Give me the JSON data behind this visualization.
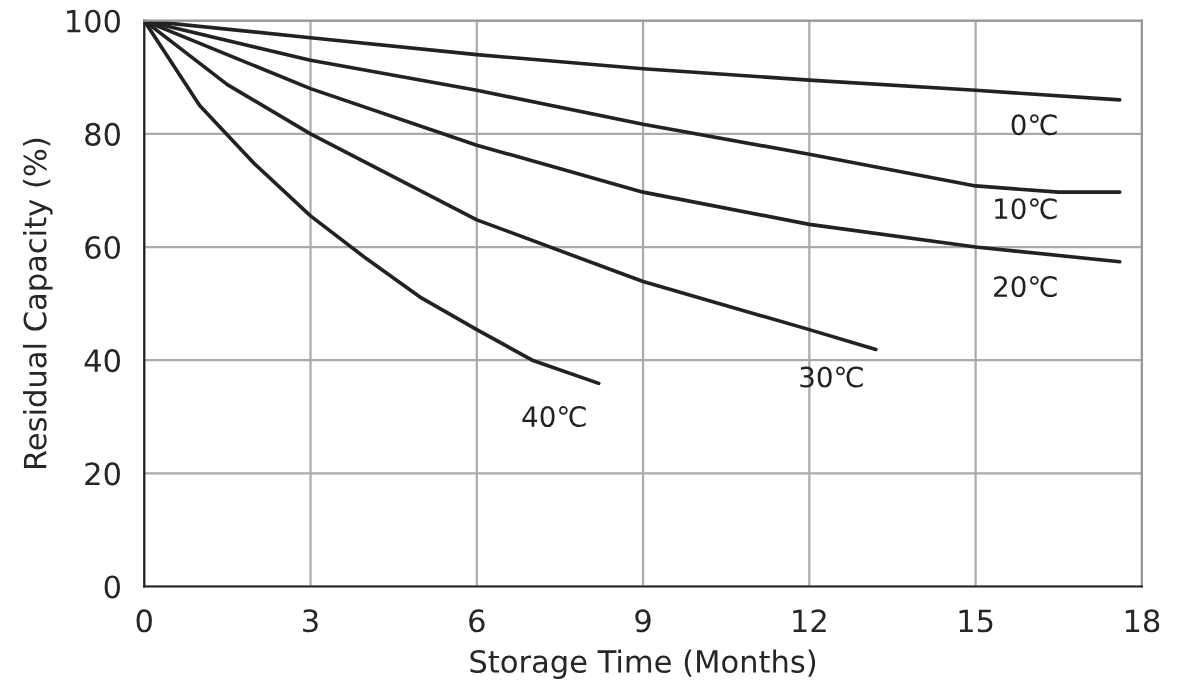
{
  "chart_data": {
    "type": "line",
    "xlabel": "Storage Time (Months)",
    "ylabel": "Residual Capacity (%)",
    "xlim": [
      0,
      18
    ],
    "xticks": [
      0,
      3,
      6,
      9,
      12,
      15,
      18
    ],
    "ylim": [
      0,
      100
    ],
    "yticks": [
      0,
      20,
      40,
      60,
      80,
      100
    ],
    "grid": true,
    "legend": false,
    "marker": "none",
    "line_style": "solid",
    "series": [
      {
        "name": "0℃",
        "color": "#222222",
        "x": [
          0,
          3,
          6,
          9,
          12,
          15,
          17.6
        ],
        "values": [
          100,
          97,
          94,
          91.5,
          89.5,
          87.7,
          86
        ]
      },
      {
        "name": "10℃",
        "color": "#222222",
        "x": [
          0,
          3,
          6,
          9,
          12,
          15,
          16.5,
          17.6
        ],
        "values": [
          100,
          93,
          87.7,
          81.7,
          76.4,
          70.8,
          69.7,
          69.7
        ]
      },
      {
        "name": "20℃",
        "color": "#222222",
        "x": [
          0,
          3,
          6,
          9,
          12,
          15,
          17.6
        ],
        "values": [
          100,
          88,
          78,
          69.7,
          64,
          60,
          57.4
        ]
      },
      {
        "name": "30℃",
        "color": "#222222",
        "x": [
          0,
          1.5,
          3,
          6,
          9,
          12,
          13.2
        ],
        "values": [
          100,
          88.7,
          80,
          64.8,
          53.9,
          45.4,
          41.9
        ]
      },
      {
        "name": "40℃",
        "color": "#222222",
        "x": [
          0,
          1,
          2,
          3,
          4,
          5,
          6,
          7,
          8.2
        ],
        "values": [
          100,
          85,
          74.6,
          65.5,
          58,
          51,
          45.4,
          40,
          35.9
        ]
      }
    ]
  }
}
